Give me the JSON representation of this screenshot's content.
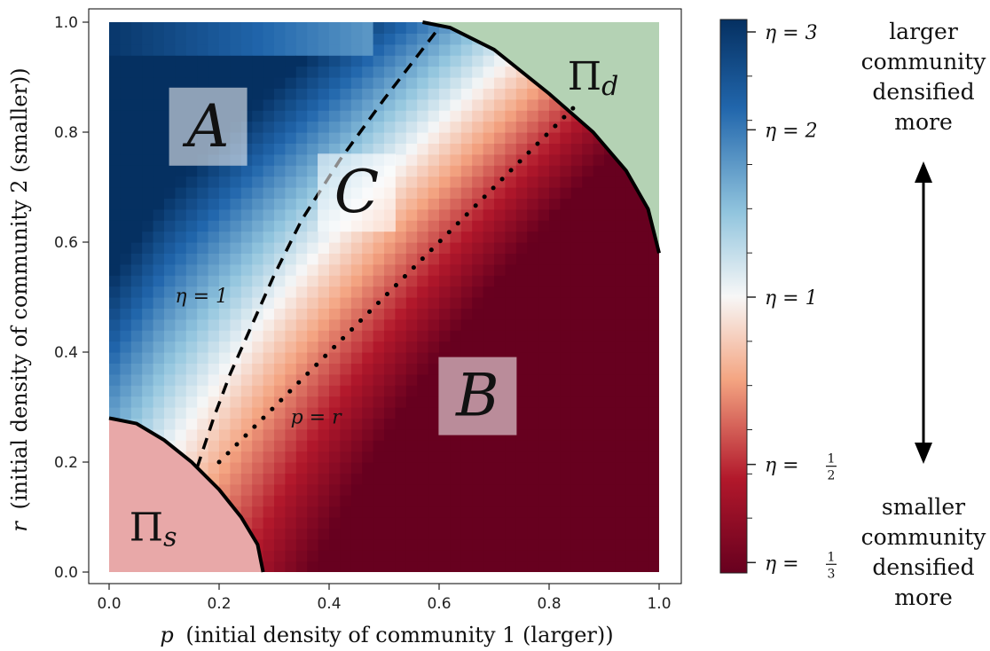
{
  "chart_data": {
    "type": "heatmap",
    "xlabel_var": "p",
    "xlabel": "(initial density of community 1 (larger))",
    "ylabel_var": "r",
    "ylabel": "(initial density of community 2 (smaller))",
    "xlim": [
      0.0,
      1.0
    ],
    "ylim": [
      0.0,
      1.0
    ],
    "x_ticks": [
      "0.0",
      "0.2",
      "0.4",
      "0.6",
      "0.8",
      "1.0"
    ],
    "y_ticks": [
      "0.0",
      "0.2",
      "0.4",
      "0.6",
      "0.8",
      "1.0"
    ],
    "colormap": "RdBu",
    "colors": {
      "deep_blue": "#053061",
      "blue": "#2166ac",
      "light_blue": "#92c5de",
      "white": "#f7f7f7",
      "peach": "#f4a582",
      "red": "#b2182b",
      "deep_red": "#67001f",
      "pi_s_fill": "#e8a8a8",
      "pi_d_fill": "#b4d2b4"
    },
    "regions": [
      {
        "label": "A",
        "x": 0.18,
        "y": 0.81
      },
      {
        "label": "C",
        "x": 0.45,
        "y": 0.69
      },
      {
        "label": "B",
        "x": 0.67,
        "y": 0.32
      },
      {
        "label": "Π",
        "sub": "s",
        "x": 0.08,
        "y": 0.08
      },
      {
        "label": "Π",
        "sub": "d",
        "x": 0.88,
        "y": 0.9
      }
    ],
    "boundary_Pi_s": [
      [
        0.0,
        0.28
      ],
      [
        0.05,
        0.27
      ],
      [
        0.1,
        0.24
      ],
      [
        0.15,
        0.2
      ],
      [
        0.2,
        0.15
      ],
      [
        0.24,
        0.1
      ],
      [
        0.27,
        0.05
      ],
      [
        0.28,
        0.0
      ]
    ],
    "boundary_Pi_d": [
      [
        0.57,
        1.0
      ],
      [
        0.62,
        0.99
      ],
      [
        0.7,
        0.95
      ],
      [
        0.8,
        0.87
      ],
      [
        0.88,
        0.8
      ],
      [
        0.94,
        0.73
      ],
      [
        0.98,
        0.66
      ],
      [
        0.995,
        0.6
      ],
      [
        1.0,
        0.58
      ]
    ],
    "eta1_curve": [
      [
        0.16,
        0.19
      ],
      [
        0.19,
        0.28
      ],
      [
        0.22,
        0.36
      ],
      [
        0.26,
        0.45
      ],
      [
        0.3,
        0.54
      ],
      [
        0.35,
        0.64
      ],
      [
        0.42,
        0.75
      ],
      [
        0.5,
        0.86
      ],
      [
        0.6,
        0.99
      ]
    ],
    "eta1_label": "η = 1",
    "pr_line": [
      [
        0.2,
        0.2
      ],
      [
        0.85,
        0.85
      ]
    ],
    "pr_label": "p = r",
    "colorbar": {
      "labels": [
        {
          "text": "η = 3",
          "value": 3
        },
        {
          "text": "η = 2",
          "value": 2
        },
        {
          "text": "η = 1",
          "value": 1
        },
        {
          "text": "η = ",
          "frac": [
            "1",
            "2"
          ],
          "value": 0.5
        },
        {
          "text": "η = ",
          "frac": [
            "1",
            "3"
          ],
          "value": 0.333
        }
      ]
    },
    "side_top": [
      "larger",
      "community",
      "densified",
      "more"
    ],
    "side_bottom": [
      "smaller",
      "community",
      "densified",
      "more"
    ]
  }
}
